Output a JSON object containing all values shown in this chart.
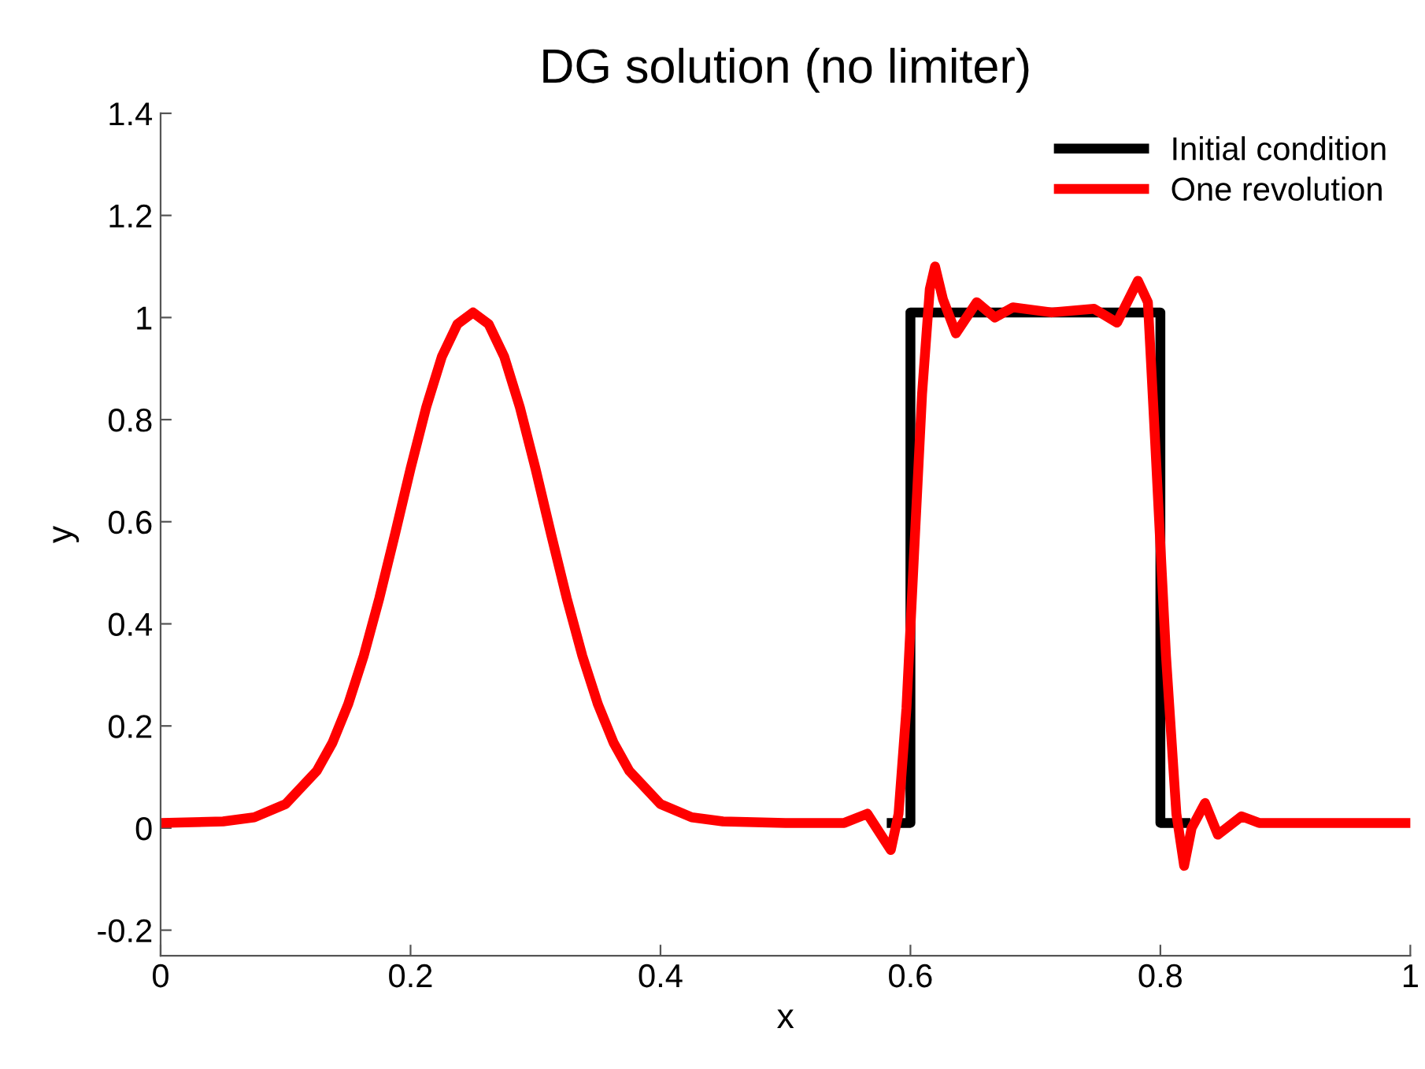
{
  "chart_data": {
    "type": "line",
    "title": "DG solution (no limiter)",
    "xlabel": "x",
    "ylabel": "y",
    "xlim": [
      0,
      1
    ],
    "ylim": [
      -0.25,
      1.4
    ],
    "xticks": [
      0,
      0.2,
      0.4,
      0.6,
      0.8,
      1
    ],
    "yticks": [
      -0.2,
      0,
      0.2,
      0.4,
      0.6,
      0.8,
      1,
      1.2,
      1.4
    ],
    "legend": "top right",
    "grid": false,
    "marker": "none",
    "line_style": "solid",
    "series": [
      {
        "name": "Initial condition",
        "color": "#000000",
        "x": [
          0.585,
          0.6,
          0.6,
          0.8,
          0.8,
          0.82
        ],
        "values": [
          0.01,
          0.01,
          1.01,
          1.01,
          0.01,
          0.01
        ]
      },
      {
        "name": "One revolution",
        "color": "#ff0000",
        "x": [
          0,
          0.05,
          0.075,
          0.1,
          0.125,
          0.1375,
          0.15,
          0.1625,
          0.175,
          0.1875,
          0.2,
          0.2125,
          0.225,
          0.2375,
          0.25,
          0.2625,
          0.275,
          0.2875,
          0.3,
          0.3125,
          0.325,
          0.3375,
          0.35,
          0.3625,
          0.375,
          0.4,
          0.425,
          0.45,
          0.5,
          0.547,
          0.5655,
          0.5843,
          0.5905,
          0.5968,
          0.603,
          0.6093,
          0.6155,
          0.6197,
          0.626,
          0.6364,
          0.653,
          0.6676,
          0.682,
          0.713,
          0.747,
          0.7653,
          0.782,
          0.79,
          0.796,
          0.8045,
          0.8128,
          0.819,
          0.825,
          0.8357,
          0.846,
          0.865,
          0.879,
          0.921,
          1
        ],
        "values": [
          0.01,
          0.013,
          0.021,
          0.047,
          0.112,
          0.167,
          0.242,
          0.337,
          0.45,
          0.575,
          0.704,
          0.824,
          0.923,
          0.987,
          1.01,
          0.987,
          0.923,
          0.824,
          0.704,
          0.575,
          0.45,
          0.337,
          0.242,
          0.167,
          0.112,
          0.047,
          0.021,
          0.013,
          0.01,
          0.01,
          0.028,
          -0.043,
          0.028,
          0.234,
          0.542,
          0.85,
          1.056,
          1.1,
          1.036,
          0.969,
          1.03,
          1.0,
          1.02,
          1.01,
          1.017,
          0.99,
          1.072,
          1.03,
          0.748,
          0.337,
          0.028,
          -0.074,
          0.0,
          0.049,
          -0.013,
          0.023,
          0.01,
          0.01,
          0.01
        ]
      }
    ]
  }
}
